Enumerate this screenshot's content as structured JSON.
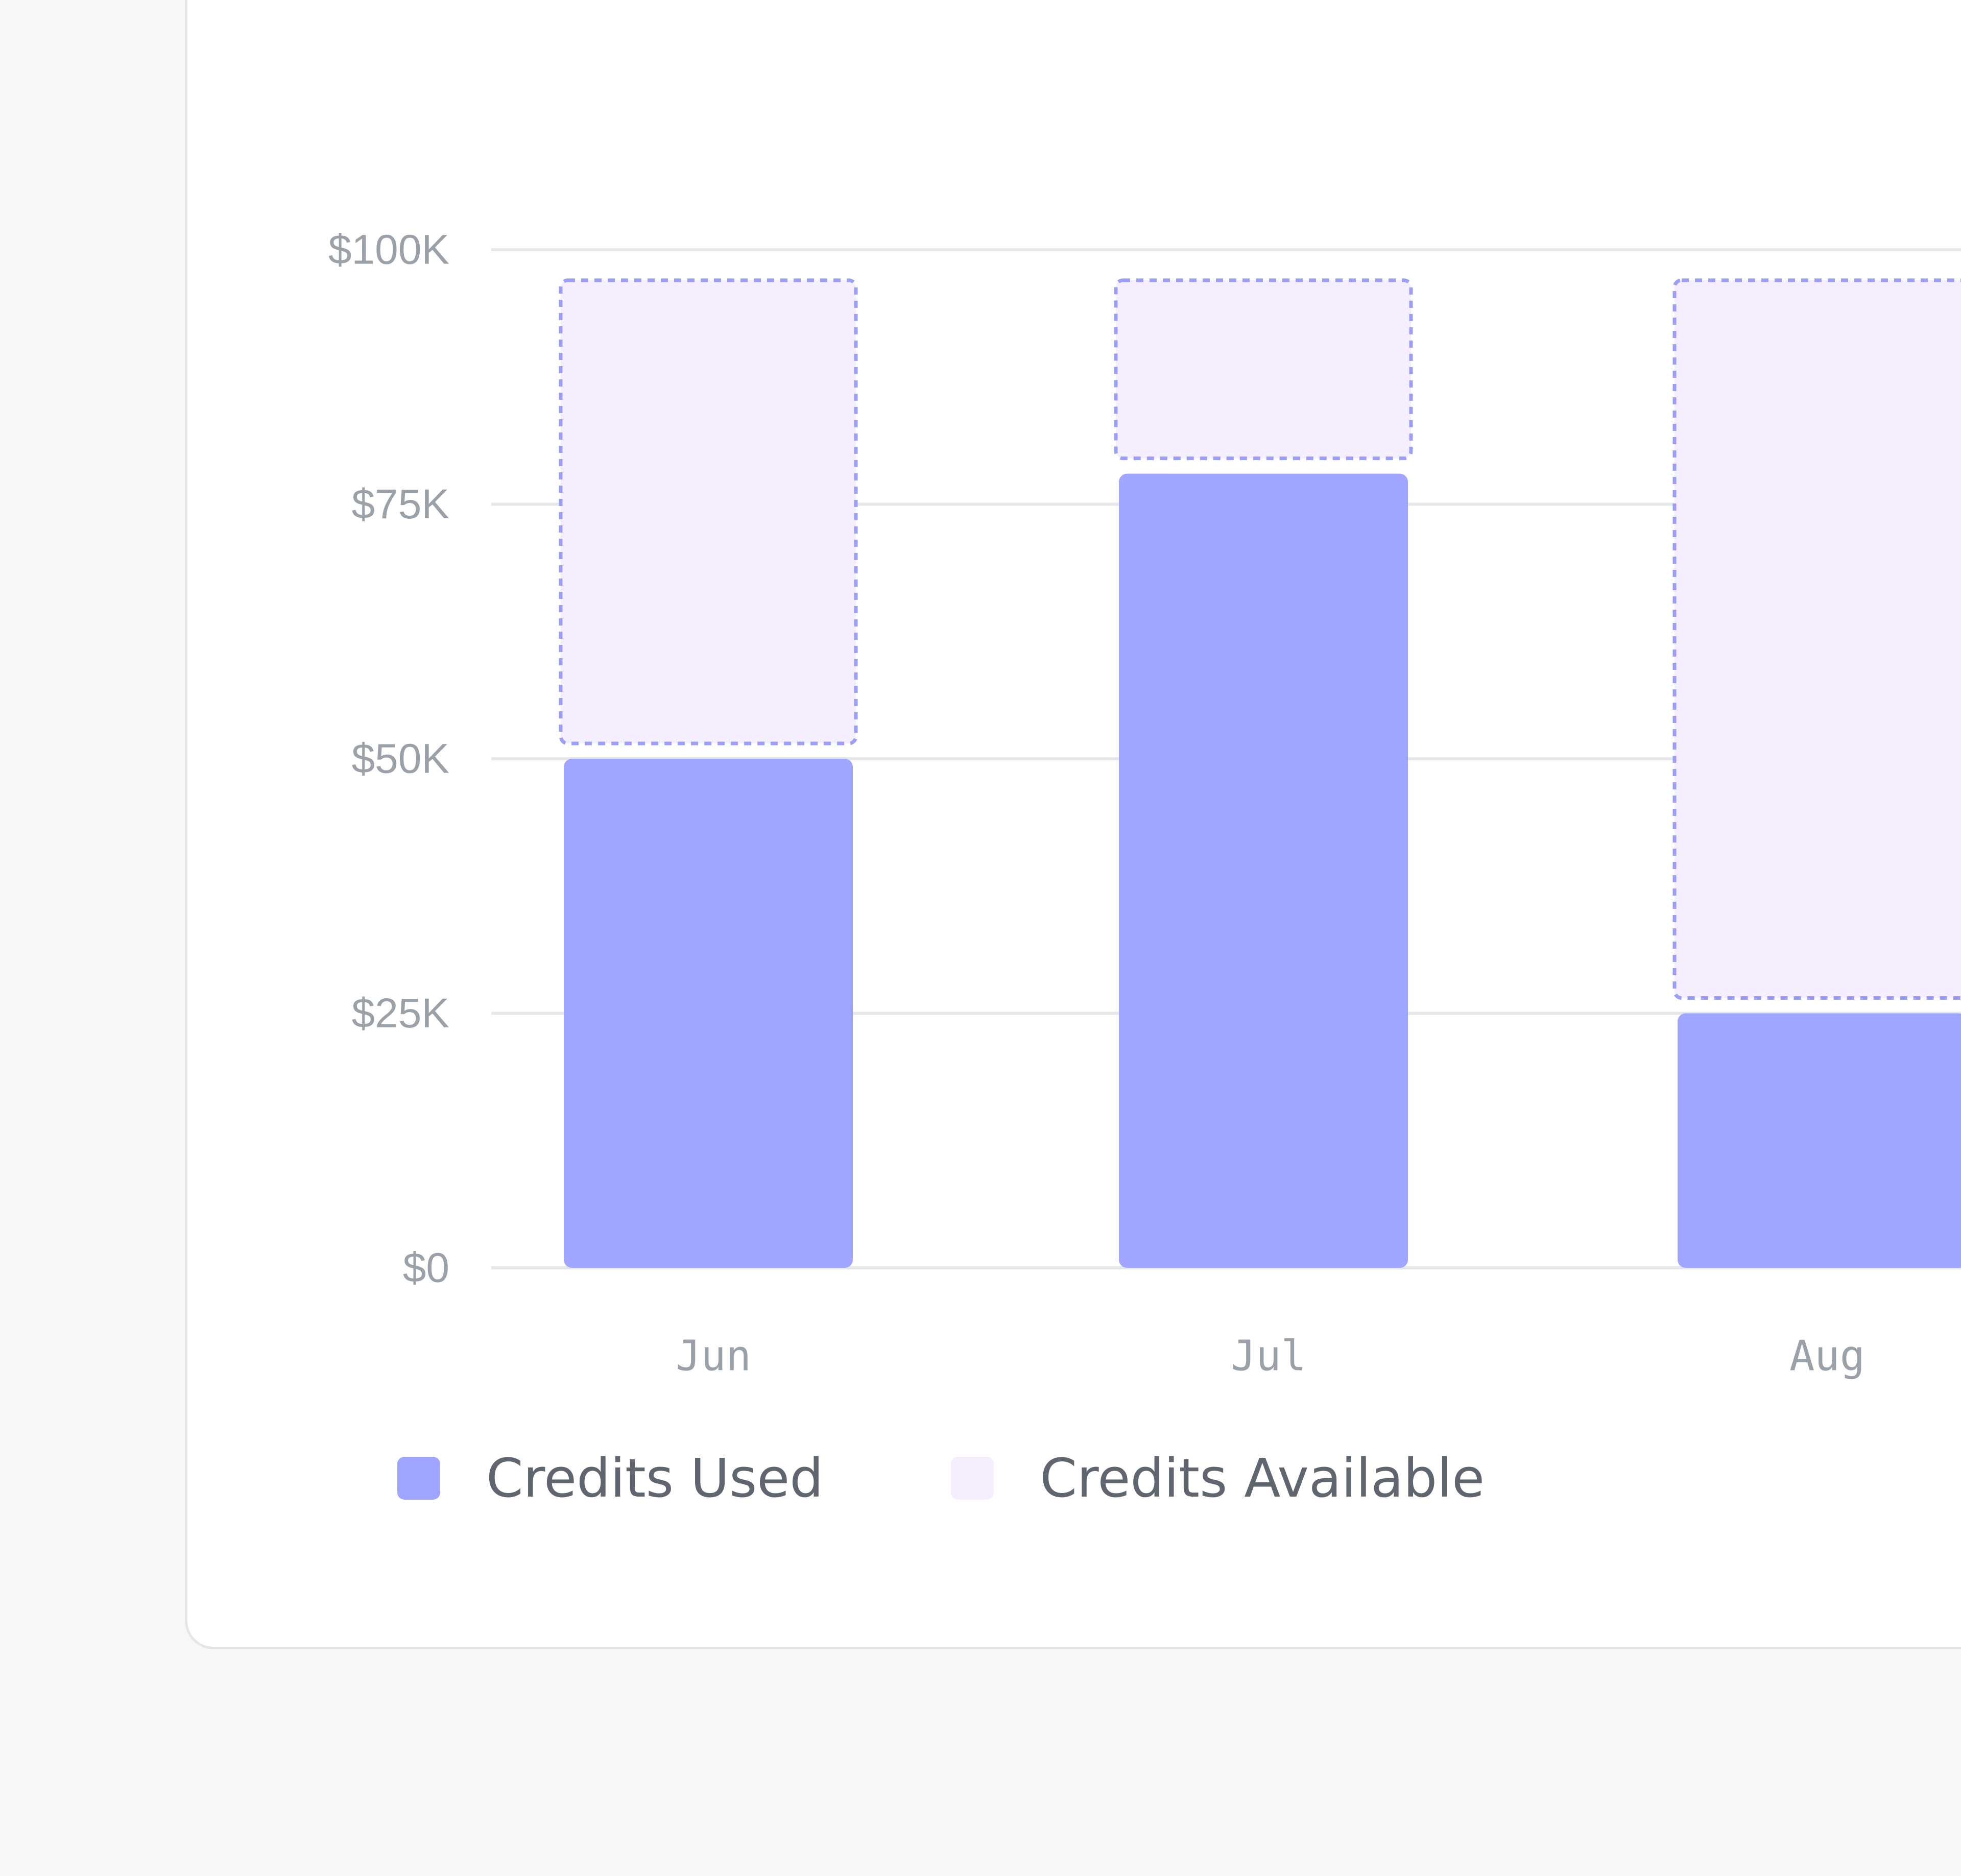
{
  "chart_data": {
    "type": "bar",
    "stacked": true,
    "title": "",
    "xlabel": "",
    "ylabel": "",
    "categories": [
      "Jun",
      "Jul",
      "Aug"
    ],
    "series": [
      {
        "name": "Credits Used",
        "values": [
          50000,
          78000,
          25000
        ],
        "color": "#a0a5ff"
      },
      {
        "name": "Credits Available",
        "values": [
          47000,
          19000,
          72000
        ],
        "color": "#f4eefe",
        "border": "dashed",
        "border_color": "#9b9ff6"
      }
    ],
    "ylim": [
      0,
      100000
    ],
    "y_ticks": [
      {
        "value": 0,
        "label": "$0"
      },
      {
        "value": 25000,
        "label": "$25K"
      },
      {
        "value": 50000,
        "label": "$50K"
      },
      {
        "value": 75000,
        "label": "$75K"
      },
      {
        "value": 100000,
        "label": "$100K"
      }
    ],
    "grid": true,
    "legend_position": "bottom-left"
  },
  "legend": {
    "items": [
      {
        "label": "Credits Used",
        "color": "#a0a5ff"
      },
      {
        "label": "Credits Available",
        "color": "#f4eefe"
      }
    ]
  },
  "colors": {
    "used": "#a0a5ff",
    "available_fill": "#f4eefe",
    "available_border": "#9b9ff6",
    "grid": "#e5e7ea",
    "tick_text": "#9aa1a9",
    "card_background": "#ffffff",
    "page_background": "#f7f7f7"
  }
}
